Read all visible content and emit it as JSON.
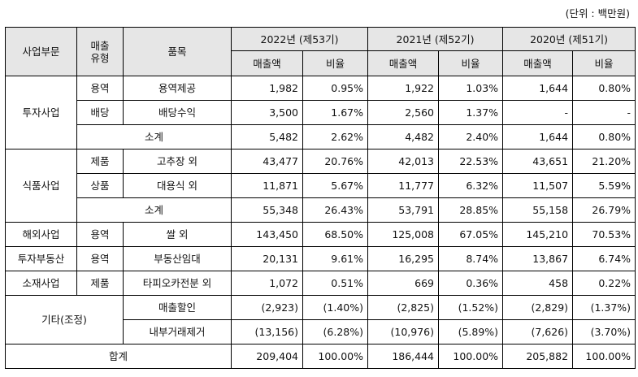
{
  "unit_note": "(단위 : 백만원)",
  "header": {
    "segment": "사업부문",
    "sales_type_l1": "매출",
    "sales_type_l2": "유형",
    "item": "품목",
    "years": [
      "2022년 (제53기)",
      "2021년 (제52기)",
      "2020년 (제51기)"
    ],
    "sales": "매출액",
    "ratio": "비율"
  },
  "rows": {
    "invest_1": {
      "segment": "투자사업",
      "type": "용역",
      "item": "용역제공",
      "v": [
        "1,982",
        "0.95%",
        "1,922",
        "1.03%",
        "1,644",
        "0.80%"
      ]
    },
    "invest_2": {
      "type": "배당",
      "item": "배당수익",
      "v": [
        "3,500",
        "1.67%",
        "2,560",
        "1.37%",
        "-",
        "-"
      ]
    },
    "invest_sub": {
      "label": "소계",
      "v": [
        "5,482",
        "2.62%",
        "4,482",
        "2.40%",
        "1,644",
        "0.80%"
      ]
    },
    "food_1": {
      "segment": "식품사업",
      "type": "제품",
      "item": "고추장 외",
      "v": [
        "43,477",
        "20.76%",
        "42,013",
        "22.53%",
        "43,651",
        "21.20%"
      ]
    },
    "food_2": {
      "type": "상품",
      "item": "대용식 외",
      "v": [
        "11,871",
        "5.67%",
        "11,777",
        "6.32%",
        "11,507",
        "5.59%"
      ]
    },
    "food_sub": {
      "label": "소계",
      "v": [
        "55,348",
        "26.43%",
        "53,791",
        "28.85%",
        "55,158",
        "26.79%"
      ]
    },
    "overseas": {
      "segment": "해외사업",
      "type": "용역",
      "item": "쌀 외",
      "v": [
        "143,450",
        "68.50%",
        "125,008",
        "67.05%",
        "145,210",
        "70.53%"
      ]
    },
    "realestate": {
      "segment": "투자부동산",
      "type": "용역",
      "item": "부동산임대",
      "v": [
        "20,131",
        "9.61%",
        "16,295",
        "8.74%",
        "13,867",
        "6.74%"
      ]
    },
    "materials": {
      "segment": "소재사업",
      "type": "제품",
      "item": "타피오카전분 외",
      "v": [
        "1,072",
        "0.51%",
        "669",
        "0.36%",
        "458",
        "0.22%"
      ]
    },
    "other_1": {
      "segment": "기타(조정)",
      "item": "매출할인",
      "v": [
        "(2,923)",
        "(1.40%)",
        "(2,825)",
        "(1.52%)",
        "(2,829)",
        "(1.37%)"
      ]
    },
    "other_2": {
      "item": "내부거래제거",
      "v": [
        "(13,156)",
        "(6.28%)",
        "(10,976)",
        "(5.89%)",
        "(7,626)",
        "(3.70%)"
      ]
    },
    "total": {
      "label": "합계",
      "v": [
        "209,404",
        "100.00%",
        "186,444",
        "100.00%",
        "205,882",
        "100.00%"
      ]
    }
  }
}
